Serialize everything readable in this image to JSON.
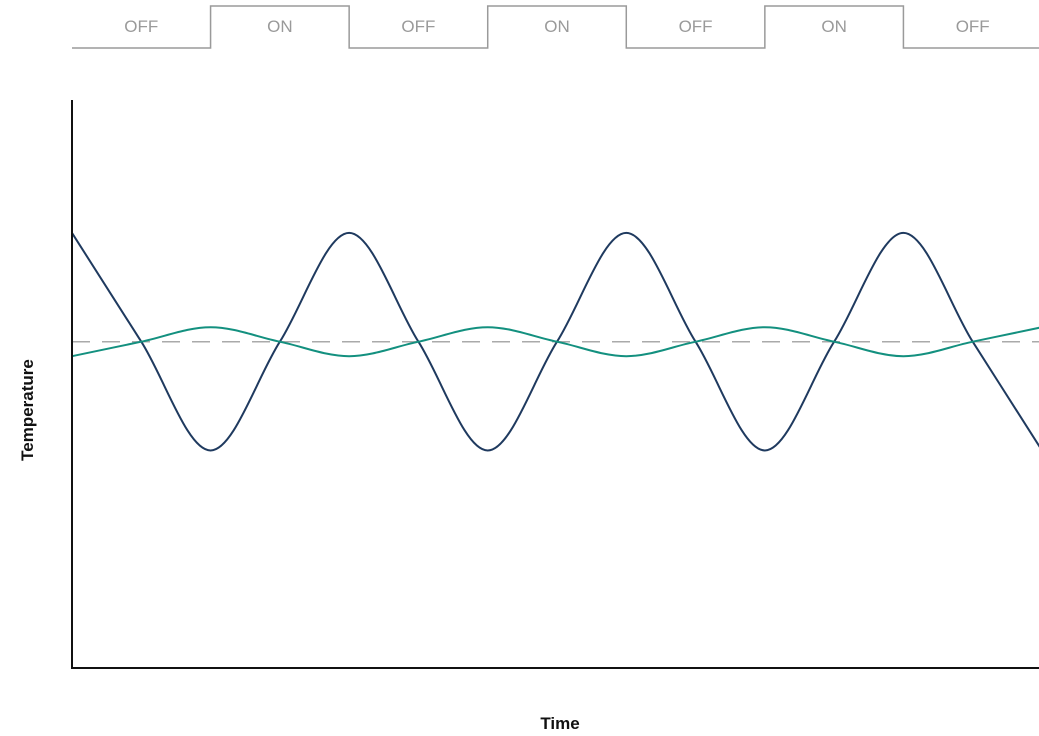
{
  "chart_data": {
    "type": "line",
    "xlabel": "Time",
    "ylabel": "Temperature",
    "states": [
      "OFF",
      "ON",
      "OFF",
      "ON",
      "OFF",
      "ON",
      "OFF"
    ],
    "xlim": [
      0,
      7
    ],
    "ylim": [
      -1.35,
      1.0
    ],
    "setpoint": 0,
    "series": [
      {
        "color": "#1f3a5f",
        "x": [
          0,
          0.5,
          1,
          1.5,
          2,
          2.5,
          3,
          3.5,
          4,
          4.5,
          5,
          5.5,
          6,
          6.5,
          7
        ],
        "y": [
          0.45,
          0,
          -0.45,
          0,
          0.45,
          0,
          -0.45,
          0,
          0.45,
          0,
          -0.45,
          0,
          0.45,
          0,
          -0.45
        ]
      },
      {
        "color": "#13907f",
        "x": [
          0,
          0.5,
          1,
          1.5,
          2,
          2.5,
          3,
          3.5,
          4,
          4.5,
          5,
          5.5,
          6,
          6.5,
          7
        ],
        "y": [
          -0.06,
          0,
          0.06,
          0,
          -0.06,
          0,
          0.06,
          0,
          -0.06,
          0,
          0.06,
          0,
          -0.06,
          0,
          0.06
        ]
      }
    ],
    "colors": {
      "setpoint_line": "#aaaaaa",
      "state_outline": "#9a9a9a",
      "axis": "#111111"
    }
  }
}
